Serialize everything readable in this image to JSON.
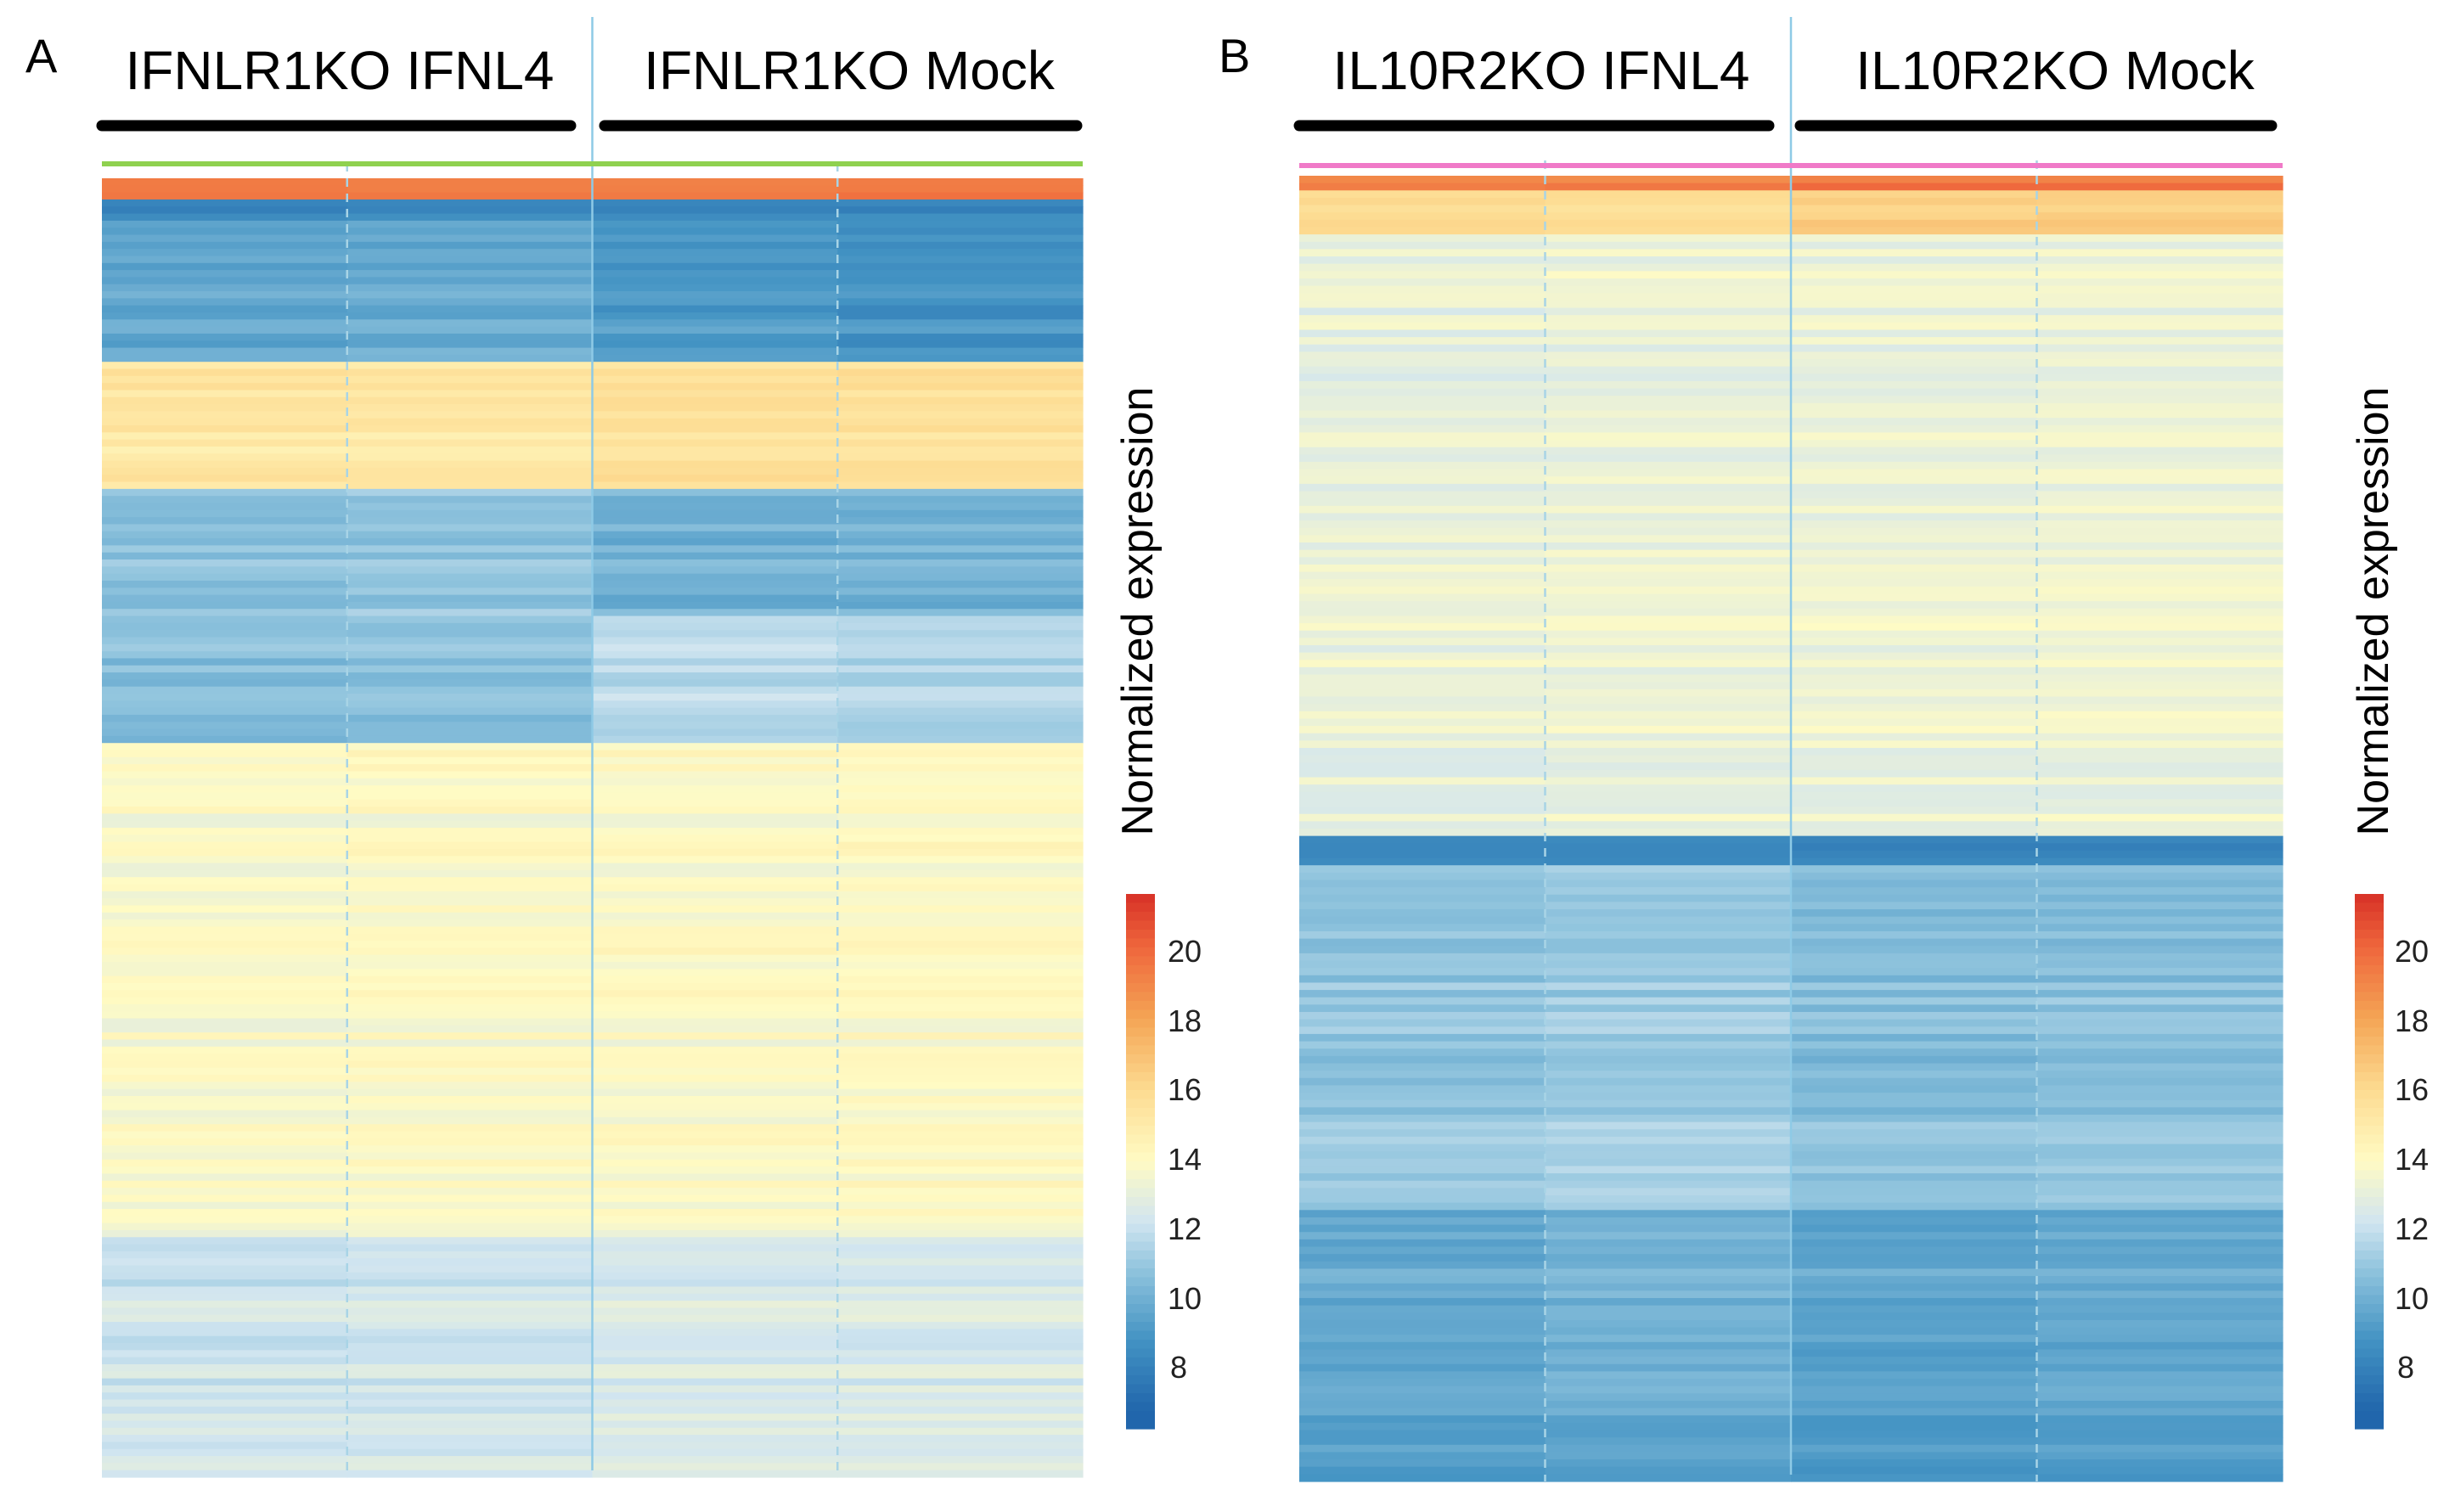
{
  "chart_data": [
    {
      "type": "heatmap",
      "panel_label": "A",
      "groups": [
        {
          "name": "IFNLR1KO IFNL4",
          "samples": 2
        },
        {
          "name": "IFNLR1KO Mock",
          "samples": 2
        }
      ],
      "annotation_color": "#8fd14f",
      "colorbar": {
        "label": "Normalized expression",
        "ticks": [
          20,
          18,
          16,
          14,
          12,
          10,
          8
        ],
        "range": [
          6.5,
          21.5
        ]
      },
      "row_blocks": [
        {
          "rows": 3,
          "values": [
            19.5,
            19.5,
            19.5,
            19.5
          ]
        },
        {
          "rows": 3,
          "values": [
            8.5,
            8.5,
            8.5,
            8.5
          ]
        },
        {
          "rows": 20,
          "values": [
            9.8,
            10.0,
            9.3,
            9.0
          ]
        },
        {
          "rows": 18,
          "values": [
            15.2,
            15.2,
            15.5,
            15.5
          ]
        },
        {
          "rows": 18,
          "values": [
            10.8,
            11.0,
            10.2,
            10.3
          ]
        },
        {
          "rows": 18,
          "values": [
            10.7,
            10.8,
            11.8,
            11.6
          ]
        },
        {
          "rows": 70,
          "values": [
            13.8,
            13.9,
            13.9,
            14.0
          ]
        },
        {
          "rows": 34,
          "values": [
            12.3,
            12.4,
            12.6,
            12.6
          ]
        }
      ]
    },
    {
      "type": "heatmap",
      "panel_label": "B",
      "groups": [
        {
          "name": "IL10R2KO IFNL4",
          "samples": 2
        },
        {
          "name": "IL10R2KO Mock",
          "samples": 2
        }
      ],
      "annotation_color": "#f07ac8",
      "colorbar": {
        "label": "Normalized expression",
        "ticks": [
          20,
          18,
          16,
          14,
          12,
          10,
          8
        ],
        "range": [
          6.5,
          21.5
        ]
      },
      "row_blocks": [
        {
          "rows": 2,
          "values": [
            19.0,
            19.0,
            19.5,
            19.5
          ]
        },
        {
          "rows": 6,
          "values": [
            16.0,
            16.0,
            16.5,
            16.5
          ]
        },
        {
          "rows": 82,
          "values": [
            13.2,
            13.3,
            13.3,
            13.4
          ]
        },
        {
          "rows": 4,
          "values": [
            8.8,
            8.8,
            8.6,
            8.6
          ]
        },
        {
          "rows": 47,
          "values": [
            11.0,
            11.2,
            10.7,
            10.8
          ]
        },
        {
          "rows": 27,
          "values": [
            10.0,
            10.4,
            9.8,
            10.0
          ]
        },
        {
          "rows": 10,
          "values": [
            9.6,
            9.8,
            9.4,
            9.5
          ]
        }
      ]
    }
  ]
}
